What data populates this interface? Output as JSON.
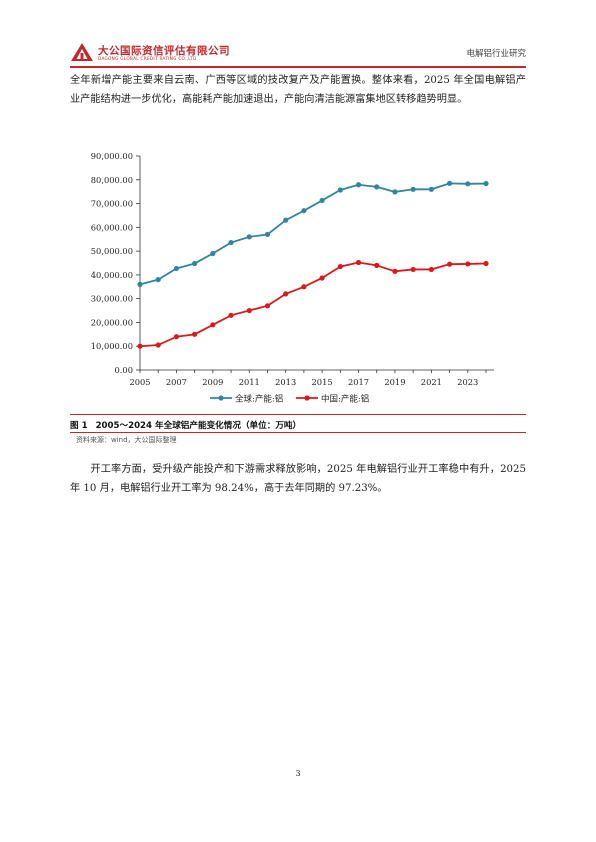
{
  "header": {
    "brand_cn": "大公国际资信评估有限公司",
    "brand_en": "DAGONG GLOBAL CREDIT RATING CO.,LTD",
    "report_title": "电解铝行业研究",
    "brand_color": "#c0292e",
    "logo_icon": "dagong-logo-icon"
  },
  "paragraph1": "全年新增产能主要来自云南、广西等区域的技改复产及产能置换。整体来看，2025 年全国电解铝产业产能结构进一步优化，高能耗产能加速退出，产能向清洁能源富集地区转移趋势明显。",
  "figure": {
    "number": "图 1",
    "title": "2005～2024 年全球铝产能变化情况（单位：万吨）",
    "source": "资料来源：wind，大公国际整理"
  },
  "chart_data": {
    "type": "line",
    "x": [
      2005,
      2006,
      2007,
      2008,
      2009,
      2010,
      2011,
      2012,
      2013,
      2014,
      2015,
      2016,
      2017,
      2018,
      2019,
      2020,
      2021,
      2022,
      2023,
      2024
    ],
    "x_tick_labels": [
      "2005",
      "2007",
      "2009",
      "2011",
      "2013",
      "2015",
      "2017",
      "2019",
      "2021",
      "2023"
    ],
    "y_tick_labels": [
      "0.00",
      "10,000.00",
      "20,000.00",
      "30,000.00",
      "40,000.00",
      "50,000.00",
      "60,000.00",
      "70,000.00",
      "80,000.00",
      "90,000.00"
    ],
    "ylim": [
      0,
      90000
    ],
    "grid": false,
    "legend_position": "bottom-center",
    "series": [
      {
        "name": "全球:产能:铝",
        "color": "#31859c",
        "values": [
          36000,
          38000,
          42700,
          44800,
          49000,
          53600,
          56000,
          57000,
          63000,
          67000,
          71300,
          75700,
          77900,
          77000,
          74900,
          76000,
          76000,
          78500,
          78300,
          78400
        ]
      },
      {
        "name": "中国:产能:铝",
        "color": "#d81a1a",
        "values": [
          10000,
          10500,
          14000,
          15000,
          19000,
          23000,
          25000,
          27000,
          32000,
          35000,
          38700,
          43500,
          45200,
          44000,
          41500,
          42300,
          42300,
          44500,
          44600,
          44800
        ]
      }
    ]
  },
  "paragraph2": "开工率方面，受升级产能投产和下游需求释放影响，2025 年电解铝行业开工率稳中有升，2025 年 10 月，电解铝行业开工率为 98.24%，高于去年同期的 97.23%。",
  "footer": {
    "page_number": "3"
  }
}
